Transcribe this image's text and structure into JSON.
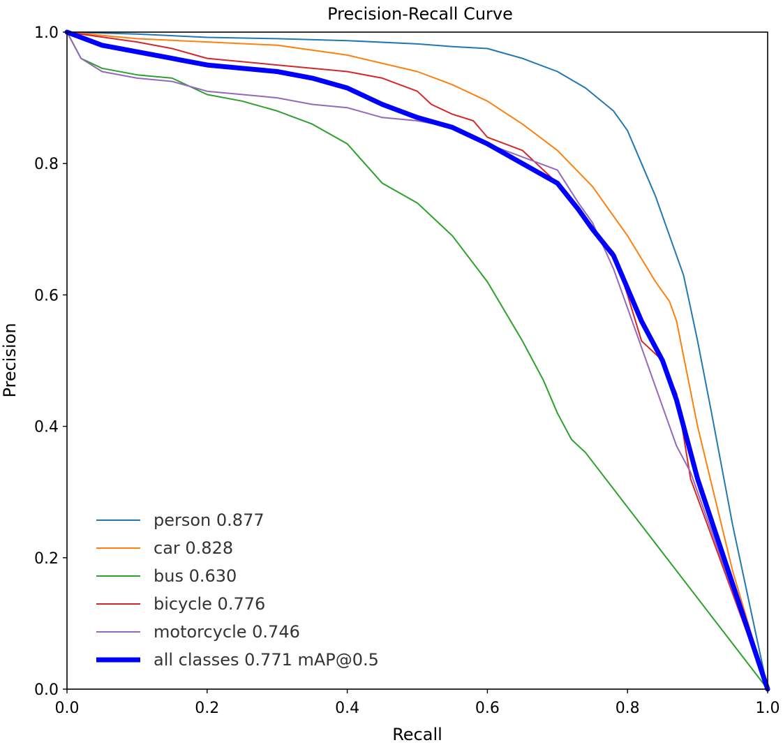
{
  "chart_data": {
    "type": "line",
    "title": "Precision-Recall Curve",
    "xlabel": "Recall",
    "ylabel": "Precision",
    "xlim": [
      0,
      1
    ],
    "ylim": [
      0,
      1
    ],
    "x_ticks": [
      "0.0",
      "0.2",
      "0.4",
      "0.6",
      "0.8",
      "1.0"
    ],
    "y_ticks": [
      "0.0",
      "0.2",
      "0.4",
      "0.6",
      "0.8",
      "1.0"
    ],
    "grid": false,
    "legend_position": "lower-left",
    "series": [
      {
        "name": "person 0.877",
        "color": "#1f77b4",
        "x": [
          0.0,
          0.1,
          0.2,
          0.3,
          0.4,
          0.5,
          0.55,
          0.6,
          0.65,
          0.7,
          0.74,
          0.78,
          0.8,
          0.82,
          0.84,
          0.86,
          0.88,
          0.89,
          0.9,
          0.92,
          0.95,
          1.0
        ],
        "y": [
          1.0,
          0.997,
          0.992,
          0.99,
          0.987,
          0.982,
          0.978,
          0.975,
          0.96,
          0.94,
          0.915,
          0.88,
          0.85,
          0.8,
          0.75,
          0.69,
          0.63,
          0.58,
          0.53,
          0.42,
          0.25,
          0.0
        ]
      },
      {
        "name": "car 0.828",
        "color": "#ff7f0e",
        "x": [
          0.0,
          0.05,
          0.1,
          0.2,
          0.3,
          0.4,
          0.5,
          0.55,
          0.6,
          0.65,
          0.7,
          0.75,
          0.78,
          0.8,
          0.82,
          0.84,
          0.86,
          0.87,
          0.9,
          0.95,
          1.0
        ],
        "y": [
          1.0,
          0.995,
          0.99,
          0.985,
          0.98,
          0.965,
          0.94,
          0.92,
          0.895,
          0.86,
          0.82,
          0.765,
          0.72,
          0.69,
          0.655,
          0.62,
          0.59,
          0.56,
          0.4,
          0.18,
          0.0
        ]
      },
      {
        "name": "bus 0.630",
        "color": "#2ca02c",
        "x": [
          0.0,
          0.02,
          0.05,
          0.1,
          0.15,
          0.2,
          0.25,
          0.3,
          0.35,
          0.4,
          0.45,
          0.5,
          0.55,
          0.6,
          0.65,
          0.68,
          0.7,
          0.72,
          0.74,
          1.0
        ],
        "y": [
          1.0,
          0.96,
          0.945,
          0.935,
          0.93,
          0.905,
          0.895,
          0.88,
          0.86,
          0.83,
          0.77,
          0.74,
          0.69,
          0.62,
          0.53,
          0.47,
          0.42,
          0.38,
          0.36,
          0.0
        ]
      },
      {
        "name": "bicycle 0.776",
        "color": "#d62728",
        "x": [
          0.0,
          0.1,
          0.15,
          0.2,
          0.3,
          0.4,
          0.45,
          0.5,
          0.52,
          0.55,
          0.58,
          0.6,
          0.65,
          0.67,
          0.7,
          0.73,
          0.75,
          0.78,
          0.8,
          0.82,
          0.85,
          0.87,
          0.89,
          1.0
        ],
        "y": [
          1.0,
          0.985,
          0.975,
          0.96,
          0.95,
          0.94,
          0.93,
          0.91,
          0.89,
          0.875,
          0.865,
          0.84,
          0.82,
          0.8,
          0.77,
          0.73,
          0.7,
          0.665,
          0.6,
          0.53,
          0.5,
          0.45,
          0.32,
          0.0
        ]
      },
      {
        "name": "motorcycle 0.746",
        "color": "#9467bd",
        "x": [
          0.0,
          0.02,
          0.05,
          0.1,
          0.15,
          0.2,
          0.25,
          0.3,
          0.35,
          0.4,
          0.45,
          0.5,
          0.55,
          0.6,
          0.65,
          0.7,
          0.73,
          0.75,
          0.78,
          0.8,
          0.82,
          0.85,
          0.87,
          0.89,
          1.0
        ],
        "y": [
          1.0,
          0.96,
          0.94,
          0.93,
          0.925,
          0.91,
          0.905,
          0.9,
          0.89,
          0.885,
          0.87,
          0.865,
          0.855,
          0.83,
          0.81,
          0.79,
          0.74,
          0.71,
          0.64,
          0.58,
          0.52,
          0.43,
          0.37,
          0.33,
          0.0
        ]
      },
      {
        "name": "all classes 0.771 mAP@0.5",
        "color": "#0000ff",
        "thick": true,
        "x": [
          0.0,
          0.05,
          0.1,
          0.15,
          0.2,
          0.25,
          0.3,
          0.35,
          0.4,
          0.45,
          0.5,
          0.55,
          0.6,
          0.65,
          0.7,
          0.73,
          0.75,
          0.78,
          0.8,
          0.82,
          0.85,
          0.87,
          0.9,
          0.95,
          1.0
        ],
        "y": [
          1.0,
          0.98,
          0.97,
          0.96,
          0.95,
          0.945,
          0.94,
          0.93,
          0.915,
          0.89,
          0.87,
          0.855,
          0.83,
          0.8,
          0.77,
          0.73,
          0.7,
          0.66,
          0.61,
          0.56,
          0.5,
          0.44,
          0.32,
          0.16,
          0.0
        ]
      }
    ]
  }
}
